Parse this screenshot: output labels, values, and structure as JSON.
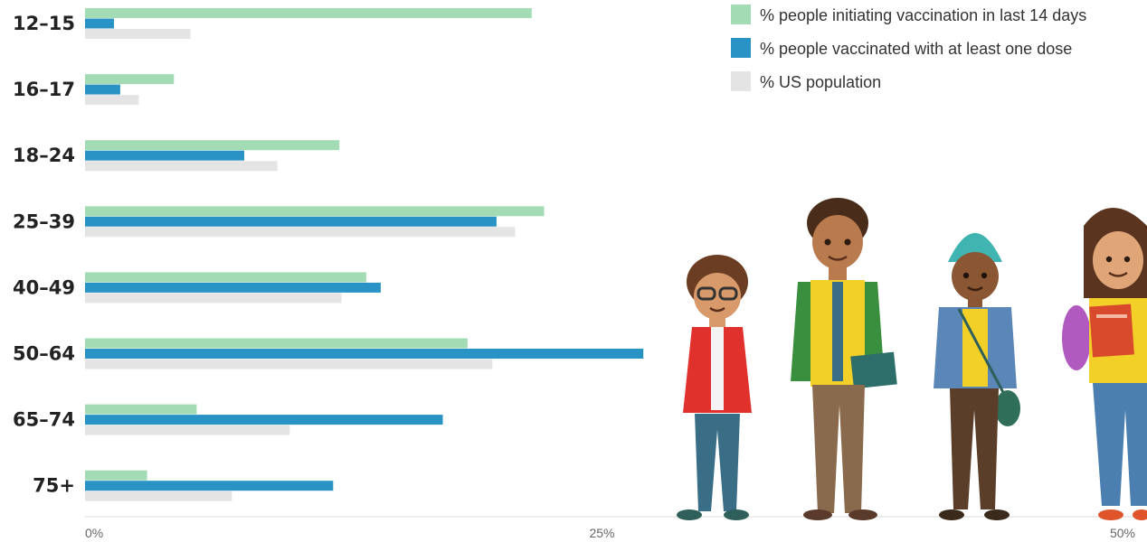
{
  "chart_data": {
    "type": "bar",
    "orientation": "horizontal",
    "title": "",
    "xlabel": "",
    "ylabel": "",
    "xlim": [
      0,
      50
    ],
    "x_ticks": [
      {
        "value": 0,
        "label": "0%"
      },
      {
        "value": 25,
        "label": "25%"
      },
      {
        "value": 50,
        "label": "50%"
      }
    ],
    "categories": [
      "12–15",
      "16–17",
      "18–24",
      "25–39",
      "40–49",
      "50–64",
      "65–74",
      "75+"
    ],
    "series": [
      {
        "name": "% people initiating vaccination in last 14 days",
        "color": "#a3dcb4",
        "values": [
          21.6,
          4.3,
          12.3,
          22.2,
          13.6,
          18.5,
          5.4,
          3.0
        ]
      },
      {
        "name": "% people vaccinated with at least one dose",
        "color": "#2a93c6",
        "values": [
          1.4,
          1.7,
          7.7,
          19.9,
          14.3,
          27.0,
          17.3,
          12.0
        ]
      },
      {
        "name": "% US population",
        "color": "#e4e4e4",
        "values": [
          5.1,
          2.6,
          9.3,
          20.8,
          12.4,
          19.7,
          9.9,
          7.1
        ]
      }
    ],
    "grid": false,
    "legend_position": "top-right"
  },
  "illustration": {
    "icon": "students-illustration-icon",
    "colors": {
      "skin": "#b97a4e",
      "skin_dark": "#8a5634",
      "hair": "#5b3420",
      "outline": "#3a2a20"
    }
  }
}
